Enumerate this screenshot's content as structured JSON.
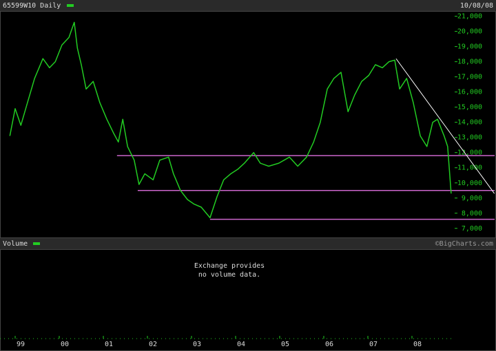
{
  "chart_data": {
    "type": "line",
    "date": "10/08/08",
    "series": [
      {
        "name": "65599W10 Daily",
        "color": "#22cc22",
        "x": [
          1998.88,
          1999.0,
          1999.13,
          1999.28,
          1999.44,
          1999.63,
          1999.78,
          1999.91,
          2000.06,
          2000.22,
          2000.34,
          2000.41,
          2000.5,
          2000.61,
          2000.77,
          2000.92,
          2001.08,
          2001.23,
          2001.34,
          2001.44,
          2001.55,
          2001.7,
          2001.81,
          2001.94,
          2002.13,
          2002.28,
          2002.48,
          2002.59,
          2002.75,
          2002.91,
          2003.06,
          2003.22,
          2003.42,
          2003.58,
          2003.73,
          2003.89,
          2004.05,
          2004.2,
          2004.41,
          2004.56,
          2004.75,
          2004.98,
          2005.22,
          2005.41,
          2005.61,
          2005.77,
          2005.92,
          2006.08,
          2006.23,
          2006.39,
          2006.55,
          2006.7,
          2006.86,
          2007.02,
          2007.17,
          2007.33,
          2007.48,
          2007.61,
          2007.72,
          2007.88,
          2008.03,
          2008.19,
          2008.34,
          2008.47,
          2008.58,
          2008.73,
          2008.81,
          2008.89
        ],
        "values": [
          13100,
          14900,
          13800,
          15300,
          16900,
          18200,
          17600,
          18000,
          19100,
          19600,
          20600,
          18900,
          17800,
          16200,
          16700,
          15300,
          14200,
          13300,
          12700,
          14200,
          12400,
          11500,
          9900,
          10600,
          10200,
          11500,
          11700,
          10600,
          9500,
          8900,
          8600,
          8400,
          7700,
          9100,
          10200,
          10600,
          10900,
          11300,
          12000,
          11300,
          11100,
          11300,
          11700,
          11100,
          11700,
          12700,
          14000,
          16200,
          16900,
          17300,
          14700,
          15800,
          16700,
          17100,
          17800,
          17600,
          18000,
          18100,
          16200,
          16900,
          15300,
          13100,
          12400,
          14000,
          14200,
          13100,
          12400,
          9300
        ]
      }
    ],
    "hlines_color": "#cc66cc",
    "hlines": [
      {
        "value": 11800,
        "from": 2001.31
      },
      {
        "value": 9500,
        "from": 2001.78
      },
      {
        "value": 7600,
        "from": 2003.42
      }
    ],
    "trendline": {
      "color": "#ffffff",
      "x": [
        2007.64,
        2009.87
      ],
      "y": [
        18200,
        9300
      ]
    },
    "xlim": [
      1998.656,
      2008.969
    ],
    "xticks": [
      {
        "value": 1999,
        "label": "99"
      },
      {
        "value": 2000,
        "label": "00"
      },
      {
        "value": 2001,
        "label": "01"
      },
      {
        "value": 2002,
        "label": "02"
      },
      {
        "value": 2003,
        "label": "03"
      },
      {
        "value": 2004,
        "label": "04"
      },
      {
        "value": 2005,
        "label": "05"
      },
      {
        "value": 2006,
        "label": "06"
      },
      {
        "value": 2007,
        "label": "07"
      },
      {
        "value": 2008,
        "label": "08"
      }
    ],
    "ylim": [
      6400,
      21300
    ],
    "yticks": [
      {
        "value": 7000,
        "label": "7,000"
      },
      {
        "value": 8000,
        "label": "8,000"
      },
      {
        "value": 9000,
        "label": "9,000"
      },
      {
        "value": 10000,
        "label": "10,000"
      },
      {
        "value": 11000,
        "label": "11,000"
      },
      {
        "value": 12000,
        "label": "12,000"
      },
      {
        "value": 13000,
        "label": "13,000"
      },
      {
        "value": 14000,
        "label": "14,000"
      },
      {
        "value": 15000,
        "label": "15,000"
      },
      {
        "value": 16000,
        "label": "16,000"
      },
      {
        "value": 17000,
        "label": "17,000"
      },
      {
        "value": 18000,
        "label": "18,000"
      },
      {
        "value": 19000,
        "label": "19,000"
      },
      {
        "value": 20000,
        "label": "20,000"
      },
      {
        "value": 21000,
        "label": "21,000"
      }
    ],
    "volume_title": "Volume",
    "volume_color": "#22cc22",
    "volume_message": [
      "Exchange provides",
      "no volume data."
    ],
    "credit": "©BigCharts.com"
  }
}
